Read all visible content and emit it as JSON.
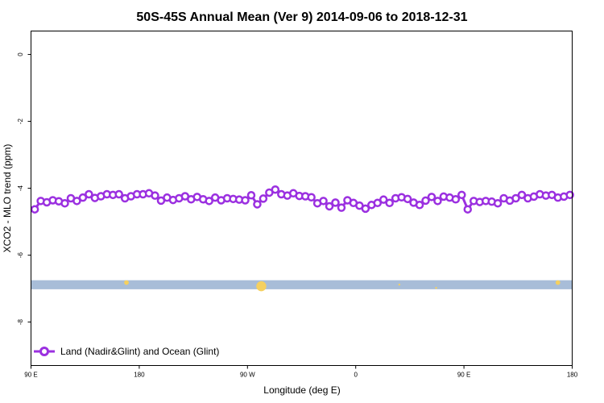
{
  "chart_data": {
    "type": "line",
    "title": "50S-45S Annual Mean (Ver 9)   2014-09-06 to 2018-12-31",
    "xlabel": "Longitude (deg E)",
    "ylabel": "XCO2 - MLO trend (ppm)",
    "xlim": [
      90,
      450
    ],
    "ylim": [
      -9.3,
      0.7
    ],
    "x_ticks": [
      {
        "value": 90,
        "label": "90 E"
      },
      {
        "value": 162,
        "label": "180"
      },
      {
        "value": 234,
        "label": "90 W"
      },
      {
        "value": 306,
        "label": "0"
      },
      {
        "value": 378,
        "label": "90 E"
      },
      {
        "value": 450,
        "label": "180"
      }
    ],
    "y_ticks": [
      {
        "value": 0,
        "label": "0"
      },
      {
        "value": -2,
        "label": "-2"
      },
      {
        "value": -4,
        "label": "-4"
      },
      {
        "value": -6,
        "label": "-6"
      },
      {
        "value": -8,
        "label": "-8"
      }
    ],
    "grid": false,
    "legend_position": "bottom-left",
    "series": [
      {
        "name": "Land (Nadir&Glint) and Ocean (Glint)",
        "color": "#9b30e0",
        "marker": "open-circle",
        "x": [
          92.5,
          96.5,
          100.5,
          104.5,
          108.5,
          112.5,
          116.5,
          120.5,
          124.5,
          128.5,
          132.5,
          136.5,
          140.5,
          144.5,
          148.5,
          152.5,
          156.5,
          160.5,
          164.5,
          168.5,
          172.5,
          176.5,
          180.5,
          184.5,
          188.5,
          192.5,
          196.5,
          200.5,
          204.5,
          208.5,
          212.5,
          216.5,
          220.5,
          224.5,
          228.5,
          232.5,
          236.5,
          240.5,
          244.5,
          248.5,
          252.5,
          256.5,
          260.5,
          264.5,
          268.5,
          272.5,
          276.5,
          280.5,
          284.5,
          288.5,
          292.5,
          296.5,
          300.5,
          304.5,
          308.5,
          312.5,
          316.5,
          320.5,
          324.5,
          328.5,
          332.5,
          336.5,
          340.5,
          344.5,
          348.5,
          352.5,
          356.5,
          360.5,
          364.5,
          368.5,
          372.5,
          376.5,
          380.5,
          384.5,
          388.5,
          392.5,
          396.5,
          400.5,
          404.5,
          408.5,
          412.5,
          416.5,
          420.5,
          424.5,
          428.5,
          432.5,
          436.5,
          440.5,
          444.5,
          448.5
        ],
        "y": [
          -4.63,
          -4.38,
          -4.42,
          -4.36,
          -4.39,
          -4.45,
          -4.3,
          -4.38,
          -4.28,
          -4.18,
          -4.29,
          -4.24,
          -4.18,
          -4.2,
          -4.18,
          -4.3,
          -4.24,
          -4.18,
          -4.18,
          -4.15,
          -4.22,
          -4.37,
          -4.28,
          -4.35,
          -4.3,
          -4.24,
          -4.33,
          -4.26,
          -4.33,
          -4.38,
          -4.28,
          -4.36,
          -4.3,
          -4.32,
          -4.34,
          -4.36,
          -4.21,
          -4.48,
          -4.31,
          -4.13,
          -4.04,
          -4.18,
          -4.22,
          -4.15,
          -4.23,
          -4.24,
          -4.27,
          -4.45,
          -4.38,
          -4.54,
          -4.43,
          -4.58,
          -4.36,
          -4.44,
          -4.52,
          -4.61,
          -4.5,
          -4.44,
          -4.34,
          -4.44,
          -4.3,
          -4.27,
          -4.32,
          -4.43,
          -4.5,
          -4.37,
          -4.26,
          -4.38,
          -4.25,
          -4.28,
          -4.33,
          -4.2,
          -4.63,
          -4.38,
          -4.41,
          -4.38,
          -4.4,
          -4.45,
          -4.3,
          -4.37,
          -4.3,
          -4.2,
          -4.3,
          -4.25,
          -4.18,
          -4.22,
          -4.2,
          -4.28,
          -4.25,
          -4.2
        ]
      }
    ],
    "band": {
      "y_range": [
        -7.02,
        -6.75
      ],
      "color": "#a8bdd8",
      "markers": [
        {
          "x": 153.5,
          "y": -6.82,
          "size": 1.2
        },
        {
          "x": 243.2,
          "y": -6.93,
          "size": 2.6
        },
        {
          "x": 335.0,
          "y": -6.88,
          "size": 0.5
        },
        {
          "x": 359.5,
          "y": -6.98,
          "size": 0.5
        },
        {
          "x": 440.5,
          "y": -6.82,
          "size": 1.2
        }
      ],
      "marker_color": "#f5d060"
    }
  }
}
